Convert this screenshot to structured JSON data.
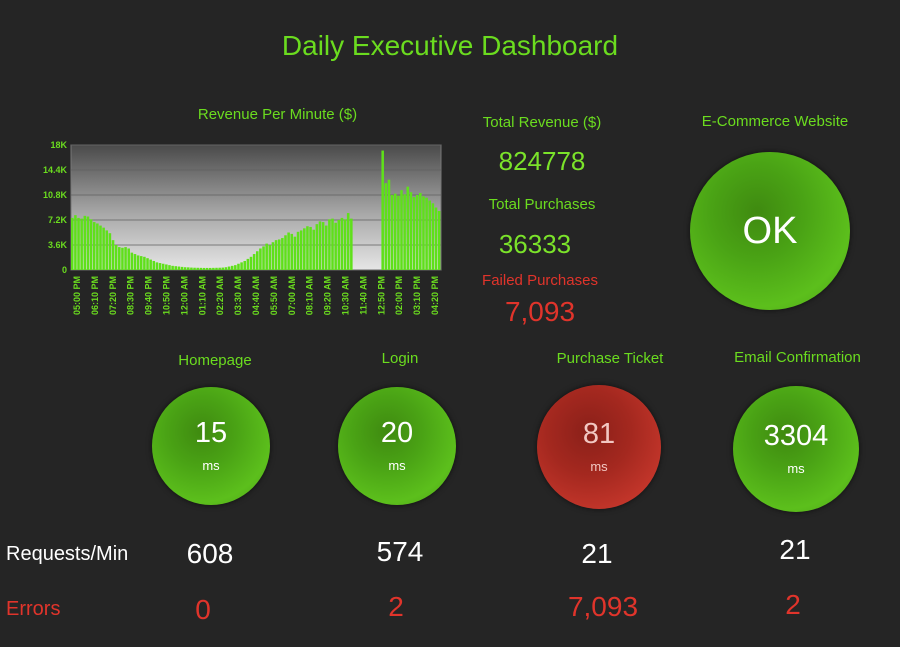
{
  "title": "Daily Executive Dashboard",
  "revenue_chart": {
    "title": "Revenue Per Minute ($)"
  },
  "chart_data": {
    "type": "bar",
    "title": "Revenue Per Minute ($)",
    "ylim": [
      0,
      18000
    ],
    "yticks": [
      "18K",
      "14.4K",
      "10.8K",
      "7.2K",
      "3.6K",
      "0"
    ],
    "xticks": [
      "05:00 PM",
      "06:10 PM",
      "07:20 PM",
      "08:30 PM",
      "09:40 PM",
      "10:50 PM",
      "12:00 AM",
      "01:10 AM",
      "02:20 AM",
      "03:30 AM",
      "04:40 AM",
      "05:50 AM",
      "07:00 AM",
      "08:10 AM",
      "09:20 AM",
      "10:30 AM",
      "11:40 AM",
      "12:50 PM",
      "02:00 PM",
      "03:10 PM",
      "04:20 PM"
    ],
    "values": [
      7500,
      7900,
      7500,
      7400,
      7800,
      7700,
      7300,
      6900,
      6700,
      6400,
      6100,
      5700,
      5300,
      4300,
      3600,
      3300,
      3200,
      3300,
      3100,
      2500,
      2300,
      2100,
      2000,
      1900,
      1700,
      1500,
      1300,
      1100,
      1000,
      900,
      800,
      700,
      600,
      550,
      500,
      450,
      400,
      380,
      350,
      330,
      320,
      310,
      300,
      300,
      300,
      310,
      320,
      330,
      350,
      400,
      500,
      600,
      700,
      900,
      1100,
      1300,
      1600,
      1900,
      2300,
      2700,
      3100,
      3400,
      3800,
      3600,
      4000,
      4300,
      4400,
      4600,
      5000,
      5400,
      5200,
      4800,
      5500,
      5700,
      6000,
      6300,
      6200,
      5800,
      6600,
      7000,
      6900,
      6400,
      7300,
      7400,
      6800,
      7200,
      7500,
      7300,
      8200,
      7400,
      0,
      0,
      0,
      0,
      0,
      0,
      0,
      0,
      0,
      17200,
      12500,
      13000,
      10800,
      11000,
      10700,
      11500,
      10900,
      12000,
      11200,
      10500,
      10800,
      11100,
      10600,
      10400,
      10000,
      9600,
      9000,
      8500
    ]
  },
  "totals": {
    "revenue_label": "Total Revenue ($)",
    "revenue_value": "824778",
    "purchases_label": "Total Purchases",
    "purchases_value": "36333",
    "failed_label": "Failed Purchases",
    "failed_value": "7,093"
  },
  "website": {
    "label": "E-Commerce Website",
    "status": "OK"
  },
  "services": [
    {
      "name": "Homepage",
      "latency": "15",
      "unit": "ms",
      "requests": "608",
      "errors": "0",
      "status": "ok"
    },
    {
      "name": "Login",
      "latency": "20",
      "unit": "ms",
      "requests": "574",
      "errors": "2",
      "status": "ok"
    },
    {
      "name": "Purchase Ticket",
      "latency": "81",
      "unit": "ms",
      "requests": "21",
      "errors": "7,093",
      "status": "error"
    },
    {
      "name": "Email Confirmation",
      "latency": "3304",
      "unit": "ms",
      "requests": "21",
      "errors": "2",
      "status": "ok"
    }
  ],
  "row_labels": {
    "requests": "Requests/Min",
    "errors": "Errors"
  },
  "colors": {
    "accent_green": "#6bdc1f",
    "error_red": "#e0342b",
    "background": "#252525"
  }
}
